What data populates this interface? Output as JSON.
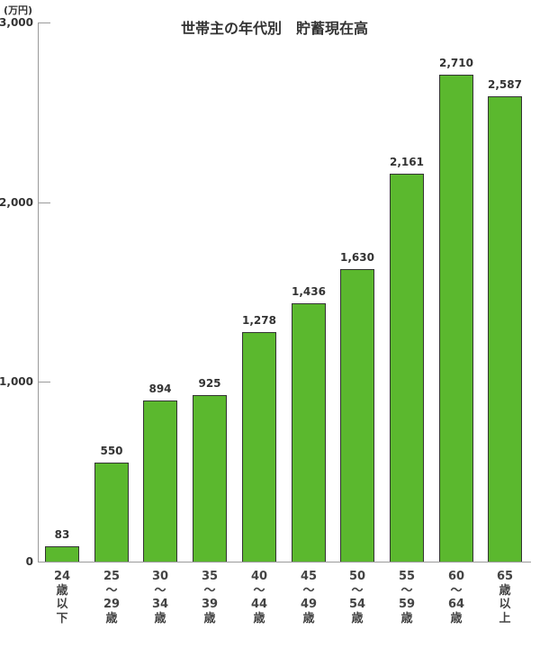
{
  "chart_data": {
    "type": "bar",
    "title": "世帯主の年代別　貯蓄現在高",
    "ylabel": "(万円)",
    "xlabel": "",
    "ylim": [
      0,
      3000
    ],
    "yticks": [
      0,
      1000,
      2000,
      3000
    ],
    "ytick_labels": [
      "0",
      "1,000",
      "2,000",
      "3,000"
    ],
    "grid": false,
    "legend": null,
    "categories": [
      "24歳以下",
      "25〜29歳",
      "30〜34歳",
      "35〜39歳",
      "40〜44歳",
      "45〜49歳",
      "50〜54歳",
      "55〜59歳",
      "60〜64歳",
      "65歳以上"
    ],
    "category_lines": [
      [
        "24",
        "歳",
        "以",
        "下"
      ],
      [
        "25",
        "〜",
        "29",
        "歳"
      ],
      [
        "30",
        "〜",
        "34",
        "歳"
      ],
      [
        "35",
        "〜",
        "39",
        "歳"
      ],
      [
        "40",
        "〜",
        "44",
        "歳"
      ],
      [
        "45",
        "〜",
        "49",
        "歳"
      ],
      [
        "50",
        "〜",
        "54",
        "歳"
      ],
      [
        "55",
        "〜",
        "59",
        "歳"
      ],
      [
        "60",
        "〜",
        "64",
        "歳"
      ],
      [
        "65",
        "歳",
        "以",
        "上"
      ]
    ],
    "values": [
      83,
      550,
      894,
      925,
      1278,
      1436,
      1630,
      2161,
      2710,
      2587
    ],
    "value_labels": [
      "83",
      "550",
      "894",
      "925",
      "1,278",
      "1,436",
      "1,630",
      "2,161",
      "2,710",
      "2,587"
    ],
    "bar_color": "#5bb82e",
    "bar_edge_color": "#333333"
  }
}
